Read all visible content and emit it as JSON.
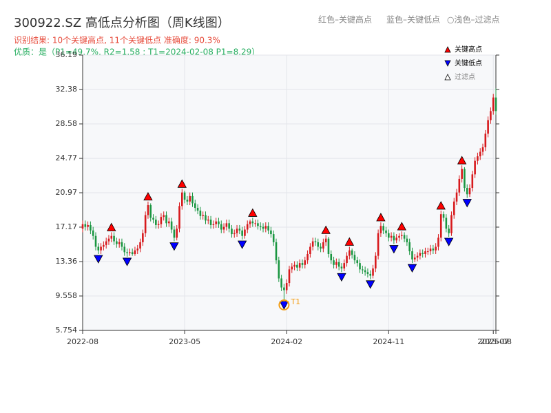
{
  "chart_data": {
    "type": "candlestick",
    "title": "300922.SZ 高低点分析图（周K线图）",
    "subtitle": "识别结果: 10个关键高点, 11个关键低点  准确度: 90.3%",
    "subtitle2": "优质：是（P1=49.7%, R2=1.58 ; T1=2024-02-08 P1=8.29）",
    "legend_note": [
      "红色–关键高点",
      "蓝色–关键低点",
      "○浅色–过滤点"
    ],
    "up_color": "#d7191c",
    "down_color": "#1a9641",
    "xlim": [
      0,
      158
    ],
    "xticks": [
      {
        "value": 0,
        "label": "2022-08"
      },
      {
        "value": 39,
        "label": "2023-05"
      },
      {
        "value": 78,
        "label": "2024-02"
      },
      {
        "value": 117,
        "label": "2024-11"
      },
      {
        "value": 157,
        "label": "2025-07"
      },
      {
        "value": 158,
        "label": "2025-08"
      }
    ],
    "ylim": [
      5.754,
      36.19
    ],
    "yticks": [
      5.754,
      9.558,
      13.36,
      17.17,
      20.97,
      24.77,
      28.58,
      32.38,
      36.19
    ],
    "grid": true,
    "candles": {
      "open": [
        17.0,
        17.5,
        17.2,
        17.4,
        16.8,
        16.2,
        15.0,
        14.6,
        15.0,
        15.2,
        15.6,
        15.9,
        16.2,
        15.6,
        15.3,
        15.5,
        15.0,
        14.4,
        14.3,
        14.4,
        14.2,
        14.6,
        14.8,
        15.5,
        16.5,
        18.5,
        19.6,
        18.2,
        18.0,
        17.4,
        17.5,
        18.3,
        18.5,
        17.6,
        17.8,
        16.9,
        16.0,
        17.0,
        19.5,
        21.0,
        20.2,
        20.0,
        20.6,
        19.8,
        19.3,
        19.0,
        18.4,
        18.5,
        17.9,
        18.0,
        17.4,
        17.5,
        17.8,
        17.5,
        16.9,
        17.2,
        17.6,
        17.0,
        16.4,
        16.5,
        17.0,
        16.8,
        16.2,
        16.9,
        17.5,
        17.8,
        17.6,
        17.6,
        17.3,
        17.2,
        17.0,
        17.3,
        16.8,
        16.4,
        15.5,
        13.5,
        11.5,
        10.5,
        10.2,
        11.0,
        12.5,
        12.8,
        13.0,
        12.7,
        13.2,
        13.0,
        13.5,
        14.2,
        15.0,
        15.6,
        15.5,
        15.0,
        14.8,
        15.5,
        15.9,
        14.2,
        13.5,
        13.0,
        13.3,
        12.8,
        12.6,
        13.2,
        14.0,
        14.6,
        14.1,
        13.5,
        13.2,
        12.5,
        12.4,
        12.2,
        12.0,
        11.8,
        12.6,
        14.0,
        16.5,
        17.3,
        16.8,
        16.5,
        16.0,
        16.2,
        15.7,
        16.0,
        16.2,
        16.3,
        15.9,
        15.5,
        14.5,
        13.6,
        13.8,
        14.0,
        14.3,
        14.2,
        14.5,
        14.5,
        14.8,
        14.6,
        15.0,
        16.0,
        18.6,
        18.2,
        17.0,
        16.5,
        18.5,
        20.0,
        21.0,
        22.5,
        23.6,
        21.5,
        20.8,
        21.5,
        23.0,
        24.5,
        25.0,
        25.5,
        26.0,
        27.5,
        29.0,
        30.0,
        31.5
      ],
      "high": [
        17.9,
        17.9,
        17.8,
        17.8,
        17.2,
        16.6,
        15.4,
        15.4,
        15.6,
        16.0,
        16.3,
        16.6,
        16.6,
        16.0,
        15.9,
        15.9,
        15.4,
        14.8,
        14.8,
        14.8,
        15.0,
        15.2,
        15.9,
        16.9,
        18.9,
        20.0,
        19.8,
        18.6,
        18.4,
        17.9,
        18.7,
        18.9,
        18.9,
        18.2,
        18.2,
        17.3,
        17.4,
        19.9,
        21.4,
        21.2,
        20.6,
        21.0,
        21.0,
        20.2,
        19.7,
        19.4,
        18.9,
        18.9,
        18.4,
        18.4,
        17.9,
        18.2,
        18.2,
        17.9,
        17.6,
        18.0,
        18.0,
        17.4,
        16.9,
        17.4,
        17.4,
        17.2,
        17.3,
        17.9,
        18.0,
        18.2,
        18.0,
        18.0,
        17.7,
        17.6,
        17.7,
        17.7,
        17.2,
        16.8,
        15.9,
        13.9,
        11.9,
        10.9,
        11.4,
        12.9,
        13.2,
        13.4,
        13.4,
        13.6,
        13.6,
        13.9,
        14.6,
        15.4,
        16.0,
        16.0,
        15.9,
        15.4,
        15.9,
        16.3,
        16.1,
        14.6,
        13.9,
        13.7,
        13.7,
        13.2,
        13.6,
        14.4,
        15.0,
        14.8,
        14.5,
        13.9,
        13.6,
        12.9,
        12.8,
        12.6,
        12.4,
        13.0,
        14.4,
        16.9,
        17.7,
        17.6,
        17.2,
        16.9,
        16.6,
        16.6,
        16.4,
        16.5,
        16.7,
        16.6,
        16.3,
        15.9,
        14.9,
        14.2,
        14.4,
        14.7,
        14.7,
        14.9,
        14.9,
        15.2,
        15.2,
        15.4,
        16.4,
        19.0,
        18.9,
        18.6,
        17.4,
        18.9,
        20.4,
        21.4,
        22.9,
        24.0,
        23.8,
        21.9,
        21.9,
        23.4,
        24.9,
        25.4,
        25.9,
        26.4,
        27.9,
        29.4,
        30.4,
        31.9,
        32.5
      ],
      "low": [
        16.6,
        16.8,
        16.8,
        16.4,
        15.8,
        14.6,
        14.2,
        14.2,
        14.6,
        14.8,
        15.2,
        15.5,
        15.2,
        14.9,
        14.9,
        14.6,
        14.0,
        13.9,
        14.0,
        14.0,
        14.0,
        14.2,
        14.4,
        15.1,
        16.1,
        18.1,
        17.8,
        17.6,
        17.0,
        17.0,
        17.1,
        17.9,
        17.2,
        17.2,
        16.5,
        15.6,
        15.7,
        16.6,
        19.1,
        19.8,
        19.6,
        19.6,
        19.4,
        18.9,
        18.6,
        18.0,
        18.0,
        17.5,
        17.5,
        17.0,
        17.0,
        17.1,
        17.1,
        16.5,
        16.5,
        16.8,
        16.6,
        16.0,
        16.0,
        16.1,
        16.4,
        15.8,
        15.9,
        16.5,
        17.1,
        17.2,
        17.2,
        16.9,
        16.8,
        16.6,
        16.6,
        16.4,
        16.0,
        15.1,
        13.1,
        11.1,
        10.1,
        9.1,
        9.8,
        10.6,
        12.1,
        12.4,
        12.3,
        12.3,
        12.6,
        12.6,
        13.1,
        13.8,
        14.6,
        15.1,
        14.6,
        14.4,
        14.4,
        15.1,
        13.8,
        13.1,
        12.6,
        12.6,
        12.4,
        12.2,
        12.3,
        12.8,
        13.6,
        13.7,
        13.1,
        12.8,
        12.1,
        12.0,
        11.8,
        11.6,
        11.4,
        11.5,
        12.2,
        13.6,
        16.1,
        16.4,
        16.1,
        15.6,
        15.6,
        15.3,
        15.4,
        15.6,
        15.8,
        15.5,
        15.1,
        14.1,
        13.2,
        13.3,
        13.4,
        13.6,
        13.8,
        13.8,
        14.1,
        14.1,
        14.2,
        14.2,
        14.6,
        15.6,
        17.8,
        16.6,
        16.1,
        16.2,
        18.1,
        19.6,
        20.6,
        22.1,
        21.1,
        20.4,
        20.5,
        21.1,
        22.6,
        24.1,
        24.6,
        25.1,
        25.6,
        27.1,
        28.6,
        29.6,
        29.6
      ],
      "close": [
        17.5,
        17.2,
        17.4,
        16.8,
        16.2,
        15.0,
        14.6,
        15.0,
        15.2,
        15.6,
        15.9,
        16.2,
        15.6,
        15.3,
        15.5,
        15.0,
        14.4,
        14.3,
        14.4,
        14.2,
        14.6,
        14.8,
        15.5,
        16.5,
        18.5,
        19.6,
        18.2,
        18.0,
        17.4,
        17.5,
        18.3,
        18.5,
        17.6,
        17.8,
        16.9,
        16.0,
        17.0,
        19.5,
        21.0,
        20.2,
        20.0,
        20.6,
        19.8,
        19.3,
        19.0,
        18.4,
        18.5,
        17.9,
        18.0,
        17.4,
        17.5,
        17.8,
        17.5,
        16.9,
        17.2,
        17.6,
        17.0,
        16.4,
        16.5,
        17.0,
        16.8,
        16.2,
        16.9,
        17.5,
        17.8,
        17.6,
        17.6,
        17.3,
        17.2,
        17.0,
        17.3,
        16.8,
        16.4,
        15.5,
        13.5,
        11.5,
        10.5,
        10.2,
        11.0,
        12.5,
        12.8,
        13.0,
        12.7,
        13.2,
        13.0,
        13.5,
        14.2,
        15.0,
        15.6,
        15.5,
        15.0,
        14.8,
        15.5,
        15.9,
        14.2,
        13.5,
        13.0,
        13.3,
        12.8,
        12.6,
        13.2,
        14.0,
        14.6,
        14.1,
        13.5,
        13.2,
        12.5,
        12.4,
        12.2,
        12.0,
        11.8,
        12.6,
        14.0,
        16.5,
        17.3,
        16.8,
        16.5,
        16.0,
        16.2,
        15.7,
        16.0,
        16.2,
        16.3,
        15.9,
        15.5,
        14.5,
        13.6,
        13.8,
        14.0,
        14.3,
        14.2,
        14.5,
        14.5,
        14.8,
        14.6,
        15.0,
        16.0,
        18.6,
        18.2,
        17.0,
        16.5,
        18.5,
        20.0,
        21.0,
        22.5,
        23.6,
        21.5,
        20.8,
        21.5,
        23.0,
        24.5,
        25.0,
        25.5,
        26.0,
        27.5,
        29.0,
        30.0,
        31.5,
        30.0
      ]
    },
    "high_points": {
      "name": "关键高点",
      "color": "#ff0000",
      "index": [
        11,
        25,
        38,
        65,
        93,
        102,
        114,
        122,
        137,
        145
      ]
    },
    "low_points": {
      "name": "关键低点",
      "color": "#0000ff",
      "index": [
        6,
        17,
        35,
        61,
        77,
        99,
        110,
        119,
        126,
        140,
        147
      ]
    },
    "filtered_points": {
      "name": "过滤点",
      "color": "#ffffff",
      "index": []
    },
    "annotation": {
      "text": "T1",
      "index": 77,
      "color": "#f39c12"
    }
  }
}
